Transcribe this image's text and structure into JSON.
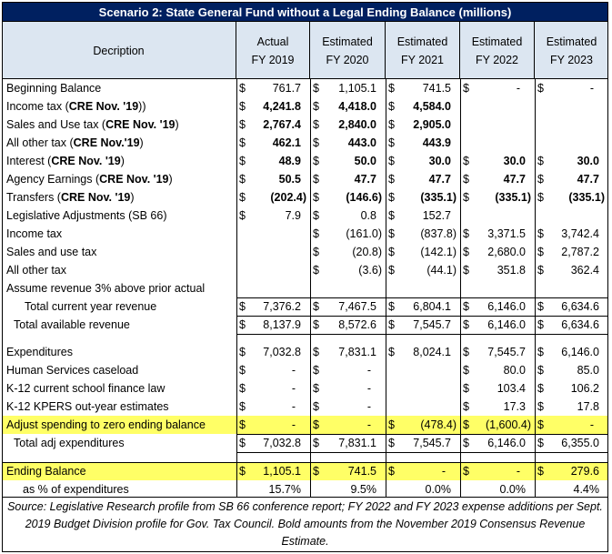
{
  "title": "Scenario 2: State General Fund without a Legal Ending Balance (millions)",
  "headers": {
    "description": "Decription",
    "columns": [
      {
        "line1": "Actual",
        "line2": "FY 2019"
      },
      {
        "line1": "Estimated",
        "line2": "FY 2020"
      },
      {
        "line1": "Estimated",
        "line2": "FY 2021"
      },
      {
        "line1": "Estimated",
        "line2": "FY 2022"
      },
      {
        "line1": "Estimated",
        "line2": "FY 2023"
      }
    ]
  },
  "rows": [
    {
      "label": "Beginning Balance",
      "bold_part": "",
      "cells": [
        [
          "$",
          "761.7"
        ],
        [
          "$",
          "1,105.1"
        ],
        [
          "$",
          "741.5"
        ],
        [
          "$",
          "-"
        ],
        [
          "$",
          "-"
        ]
      ],
      "bold": false
    },
    {
      "label": "Income tax (",
      "bold_part": "CRE Nov. '19",
      "suffix": "))",
      "cells": [
        [
          "$",
          "4,241.8"
        ],
        [
          "$",
          "4,418.0"
        ],
        [
          "$",
          "4,584.0"
        ],
        [
          "",
          ""
        ],
        [
          "",
          ""
        ]
      ],
      "bold": true
    },
    {
      "label": "Sales and Use tax (",
      "bold_part": "CRE Nov. '19",
      "suffix": ")",
      "cells": [
        [
          "$",
          "2,767.4"
        ],
        [
          "$",
          "2,840.0"
        ],
        [
          "$",
          "2,905.0"
        ],
        [
          "",
          ""
        ],
        [
          "",
          ""
        ]
      ],
      "bold": true
    },
    {
      "label": "All other tax (",
      "bold_part": "CRE Nov.'19",
      "suffix": ")",
      "cells": [
        [
          "$",
          "462.1"
        ],
        [
          "$",
          "443.0"
        ],
        [
          "$",
          "443.9"
        ],
        [
          "",
          ""
        ],
        [
          "",
          ""
        ]
      ],
      "bold": true
    },
    {
      "label": "Interest (",
      "bold_part": "CRE Nov. '19",
      "suffix": ")",
      "cells": [
        [
          "$",
          "48.9"
        ],
        [
          "$",
          "50.0"
        ],
        [
          "$",
          "30.0"
        ],
        [
          "$",
          "30.0"
        ],
        [
          "$",
          "30.0"
        ]
      ],
      "bold": true
    },
    {
      "label": "Agency Earnings (",
      "bold_part": "CRE Nov. '19",
      "suffix": ")",
      "cells": [
        [
          "$",
          "50.5"
        ],
        [
          "$",
          "47.7"
        ],
        [
          "$",
          "47.7"
        ],
        [
          "$",
          "47.7"
        ],
        [
          "$",
          "47.7"
        ]
      ],
      "bold": true
    },
    {
      "label": "Transfers (",
      "bold_part": "CRE Nov. '19",
      "suffix": ")",
      "cells": [
        [
          "$",
          "(202.4)"
        ],
        [
          "$",
          "(146.6)"
        ],
        [
          "$",
          "(335.1)"
        ],
        [
          "$",
          "(335.1)"
        ],
        [
          "$",
          "(335.1)"
        ]
      ],
      "bold": true
    },
    {
      "label": "Legislative Adjustments (SB 66)",
      "bold_part": "",
      "cells": [
        [
          "$",
          "7.9"
        ],
        [
          "$",
          "0.8"
        ],
        [
          "$",
          "152.7"
        ],
        [
          "",
          ""
        ],
        [
          "",
          ""
        ]
      ],
      "bold": false
    },
    {
      "label": "Income tax",
      "bold_part": "",
      "cells": [
        [
          "",
          ""
        ],
        [
          "$",
          "(161.0)"
        ],
        [
          "$",
          "(837.8)"
        ],
        [
          "$",
          "3,371.5"
        ],
        [
          "$",
          "3,742.4"
        ]
      ],
      "bold": false
    },
    {
      "label": "Sales and use tax",
      "bold_part": "",
      "cells": [
        [
          "",
          ""
        ],
        [
          "$",
          "(20.8)"
        ],
        [
          "$",
          "(142.1)"
        ],
        [
          "$",
          "2,680.0"
        ],
        [
          "$",
          "2,787.2"
        ]
      ],
      "bold": false
    },
    {
      "label": "All other tax",
      "bold_part": "",
      "cells": [
        [
          "",
          ""
        ],
        [
          "$",
          "(3.6)"
        ],
        [
          "$",
          "(44.1)"
        ],
        [
          "$",
          "351.8"
        ],
        [
          "$",
          "362.4"
        ]
      ],
      "bold": false
    },
    {
      "label": "Assume revenue 3% above prior actual",
      "bold_part": "",
      "cells": [
        [
          "",
          ""
        ],
        [
          "",
          ""
        ],
        [
          "",
          ""
        ],
        [
          "",
          ""
        ],
        [
          "",
          ""
        ]
      ],
      "bold": false
    },
    {
      "label": "Total current year revenue",
      "bold_part": "",
      "indent": 20,
      "cells": [
        [
          "$",
          "7,376.2"
        ],
        [
          "$",
          "7,467.5"
        ],
        [
          "$",
          "6,804.1"
        ],
        [
          "$",
          "6,146.0"
        ],
        [
          "$",
          "6,634.6"
        ]
      ],
      "bold": false
    },
    {
      "label": "Total available revenue",
      "bold_part": "",
      "indent": 8,
      "cells": [
        [
          "$",
          "8,137.9"
        ],
        [
          "$",
          "8,572.6"
        ],
        [
          "$",
          "7,545.7"
        ],
        [
          "$",
          "6,146.0"
        ],
        [
          "$",
          "6,634.6"
        ]
      ],
      "bold": false
    },
    {
      "label": "Expenditures",
      "bold_part": "",
      "cells": [
        [
          "$",
          "7,032.8"
        ],
        [
          "$",
          "7,831.1"
        ],
        [
          "$",
          "8,024.1"
        ],
        [
          "$",
          "7,545.7"
        ],
        [
          "$",
          "6,146.0"
        ]
      ],
      "bold": false
    },
    {
      "label": "Human Services caseload",
      "bold_part": "",
      "cells": [
        [
          "$",
          "-"
        ],
        [
          "$",
          "-"
        ],
        [
          "",
          ""
        ],
        [
          "$",
          "80.0"
        ],
        [
          "$",
          "85.0"
        ]
      ],
      "bold": false
    },
    {
      "label": "K-12 current school finance law",
      "bold_part": "",
      "cells": [
        [
          "$",
          "-"
        ],
        [
          "$",
          "-"
        ],
        [
          "",
          ""
        ],
        [
          "$",
          "103.4"
        ],
        [
          "$",
          "106.2"
        ]
      ],
      "bold": false
    },
    {
      "label": "K-12 KPERS out-year estimates",
      "bold_part": "",
      "cells": [
        [
          "$",
          "-"
        ],
        [
          "$",
          "-"
        ],
        [
          "",
          ""
        ],
        [
          "$",
          "17.3"
        ],
        [
          "$",
          "17.8"
        ]
      ],
      "bold": false
    },
    {
      "label": "Adjust spending to zero ending balance",
      "bold_part": "",
      "highlight": true,
      "cells": [
        [
          "$",
          "-"
        ],
        [
          "$",
          "-"
        ],
        [
          "$",
          "(478.4)"
        ],
        [
          "$",
          "(1,600.4)"
        ],
        [
          "$",
          "-"
        ]
      ],
      "bold": false
    },
    {
      "label": "Total adj expenditures",
      "bold_part": "",
      "indent": 8,
      "cells": [
        [
          "$",
          "7,032.8"
        ],
        [
          "$",
          "7,831.1"
        ],
        [
          "$",
          "7,545.7"
        ],
        [
          "$",
          "6,146.0"
        ],
        [
          "$",
          "6,355.0"
        ]
      ],
      "bold": false
    },
    {
      "label": "Ending Balance",
      "bold_part": "",
      "highlight": true,
      "cells": [
        [
          "$",
          "1,105.1"
        ],
        [
          "$",
          "741.5"
        ],
        [
          "$",
          "-"
        ],
        [
          "$",
          "-"
        ],
        [
          "$",
          "279.6"
        ]
      ],
      "bold": false
    },
    {
      "label": "as % of expenditures",
      "bold_part": "",
      "indent": 18,
      "cells": [
        [
          "",
          "15.7%"
        ],
        [
          "",
          "9.5%"
        ],
        [
          "",
          "0.0%"
        ],
        [
          "",
          "0.0%"
        ],
        [
          "",
          "4.4%"
        ]
      ],
      "bold": false
    }
  ],
  "source": "Source: Legislative Research profile from SB 66 conference report; FY 2022 and FY 2023 expense additions per Sept. 2019 Budget Division profile for Gov. Tax Council.  Bold amounts from the November 2019 Consensus Revenue Estimate."
}
